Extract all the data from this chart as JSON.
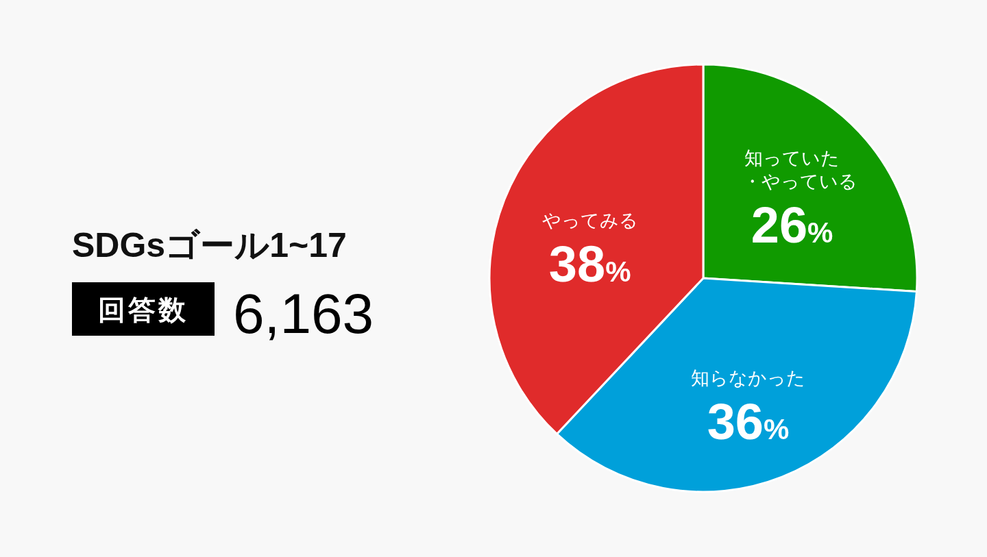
{
  "chart_data": {
    "type": "pie",
    "title": "SDGsゴール1~17",
    "annotations": [
      "回答数",
      "6,163"
    ],
    "categories": [
      "知っていた・やっている",
      "知らなかった",
      "やってみる"
    ],
    "values": [
      26,
      36,
      38
    ],
    "colors": [
      "#109a00",
      "#00a0da",
      "#e02b2b"
    ],
    "value_labels": [
      "26%",
      "36%",
      "38%"
    ]
  }
}
